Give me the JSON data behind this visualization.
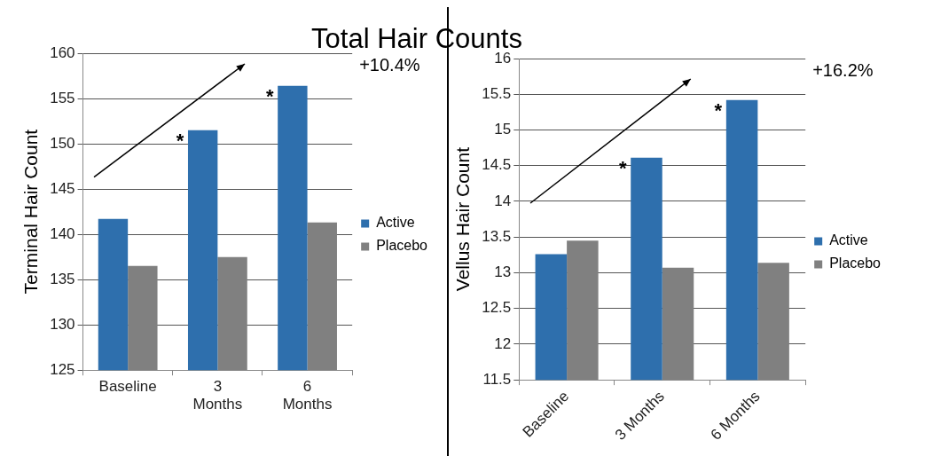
{
  "chart_data": [
    {
      "type": "bar",
      "title": "Total Hair Counts",
      "ylabel": "Terminal Hair Count",
      "categories": [
        "Baseline",
        "3 Months",
        "6 Months"
      ],
      "series": [
        {
          "name": "Active",
          "color": "#2e6fad",
          "values": [
            141.7,
            151.5,
            156.4
          ]
        },
        {
          "name": "Placebo",
          "color": "#808080",
          "values": [
            136.5,
            137.5,
            141.3
          ]
        }
      ],
      "ylim": [
        125,
        160
      ],
      "yticks": [
        125,
        130,
        135,
        140,
        145,
        150,
        155,
        160
      ],
      "grid": "y",
      "legend": "right",
      "annotations": [
        "+10.4%",
        {
          "text": "*",
          "x": "3 Months",
          "y": 151.5
        },
        {
          "text": "*",
          "x": "6 Months",
          "y": 156.4
        }
      ]
    },
    {
      "type": "bar",
      "ylabel": "Vellus Hair Count",
      "categories": [
        "Baseline",
        "3 Months",
        "6 Months"
      ],
      "series": [
        {
          "name": "Active",
          "color": "#2e6fad",
          "values": [
            13.26,
            14.61,
            15.42
          ]
        },
        {
          "name": "Placebo",
          "color": "#808080",
          "values": [
            13.45,
            13.07,
            13.14
          ]
        }
      ],
      "ylim": [
        11.5,
        16
      ],
      "yticks": [
        11.5,
        12,
        12.5,
        13,
        13.5,
        14,
        14.5,
        15,
        15.5,
        16
      ],
      "grid": "y",
      "legend": "right",
      "annotations": [
        "+16.2%",
        {
          "text": "*",
          "x": "3 Months",
          "y": 14.61
        },
        {
          "text": "*",
          "x": "6 Months",
          "y": 15.42
        }
      ]
    }
  ]
}
